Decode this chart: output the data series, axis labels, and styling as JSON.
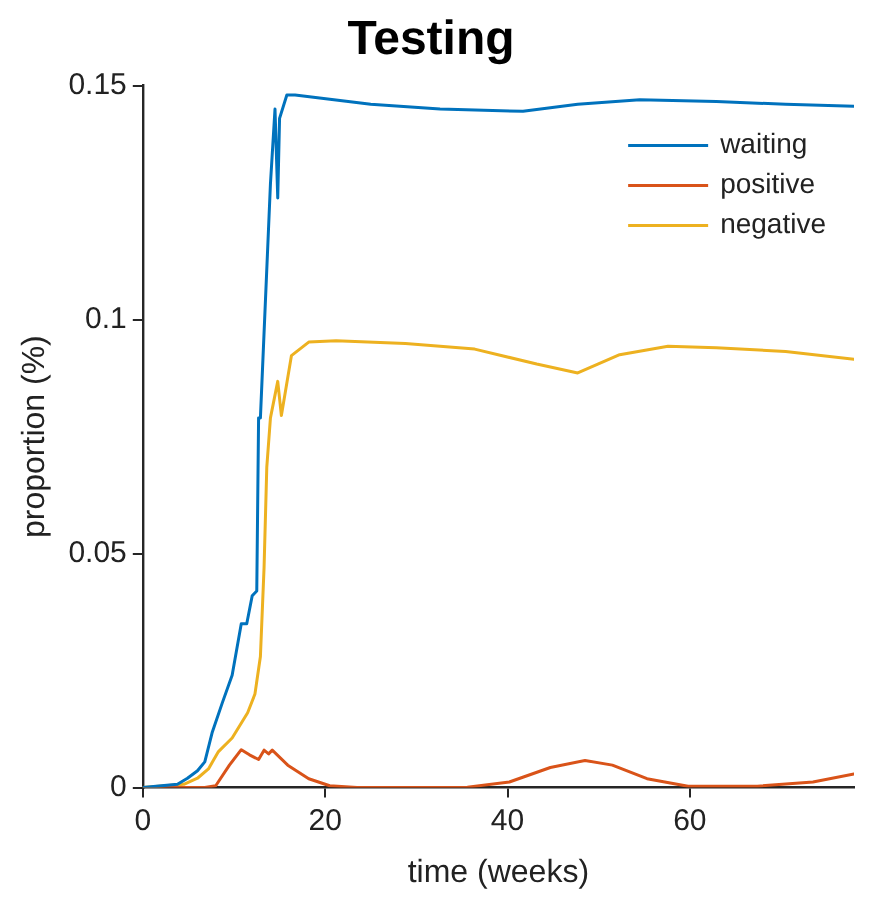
{
  "chart_data": {
    "type": "line",
    "title": "Testing",
    "xlabel": "time (weeks)",
    "ylabel": "proportion (%)",
    "xlim": [
      0,
      78
    ],
    "xticks": [
      0,
      20,
      40,
      60
    ],
    "ylim": [
      0,
      0.15
    ],
    "yticks": [
      0,
      0.05,
      0.1,
      0.15
    ],
    "legend": "top right",
    "line_style": "solid",
    "series": [
      {
        "name": "waiting",
        "color": "#0072bd",
        "x": [
          0,
          3.8,
          4.9,
          6,
          6.8,
          7.6,
          8.7,
          9.8,
          10.8,
          11.4,
          12,
          12.5,
          12.7,
          12.9,
          14,
          14.5,
          14.8,
          15,
          15.8,
          16.7,
          25,
          32.6,
          41.7,
          47.7,
          54.5,
          62.9,
          70.5,
          78
        ],
        "values": [
          0,
          0.0007,
          0.002,
          0.0036,
          0.0055,
          0.0117,
          0.018,
          0.024,
          0.035,
          0.035,
          0.041,
          0.042,
          0.079,
          0.079,
          0.129,
          0.145,
          0.126,
          0.143,
          0.148,
          0.148,
          0.146,
          0.145,
          0.1445,
          0.146,
          0.147,
          0.1466,
          0.146,
          0.1456
        ]
      },
      {
        "name": "positive",
        "color": "#d95319",
        "x": [
          0,
          6.8,
          8,
          9.5,
          10.8,
          11.7,
          12.7,
          13.3,
          13.8,
          14.2,
          15.9,
          18.2,
          20.5,
          23.5,
          35.6,
          40.2,
          44.7,
          48.5,
          51.5,
          55.3,
          59.8,
          67.4,
          73.5,
          78
        ],
        "values": [
          0,
          0,
          0.0004,
          0.0048,
          0.0081,
          0.007,
          0.006,
          0.008,
          0.0072,
          0.008,
          0.0048,
          0.0019,
          0.0004,
          0,
          0.0001,
          0.0012,
          0.0043,
          0.0058,
          0.0048,
          0.0019,
          0.0003,
          0.0003,
          0.0012,
          0.0029
        ]
      },
      {
        "name": "negative",
        "color": "#edb120",
        "x": [
          0,
          4.5,
          6,
          7.2,
          8.3,
          9.8,
          11.5,
          12.3,
          12.9,
          13.3,
          13.6,
          14,
          14.8,
          15.2,
          16.3,
          18.2,
          21.2,
          28.8,
          36.4,
          43.2,
          47.7,
          52.3,
          57.6,
          62.9,
          70.5,
          78
        ],
        "values": [
          0,
          0.0007,
          0.002,
          0.004,
          0.0077,
          0.0106,
          0.016,
          0.02,
          0.028,
          0.047,
          0.0685,
          0.079,
          0.0868,
          0.0795,
          0.0923,
          0.0952,
          0.0955,
          0.0949,
          0.0937,
          0.0905,
          0.0886,
          0.0925,
          0.0943,
          0.094,
          0.0932,
          0.0915
        ]
      }
    ]
  }
}
